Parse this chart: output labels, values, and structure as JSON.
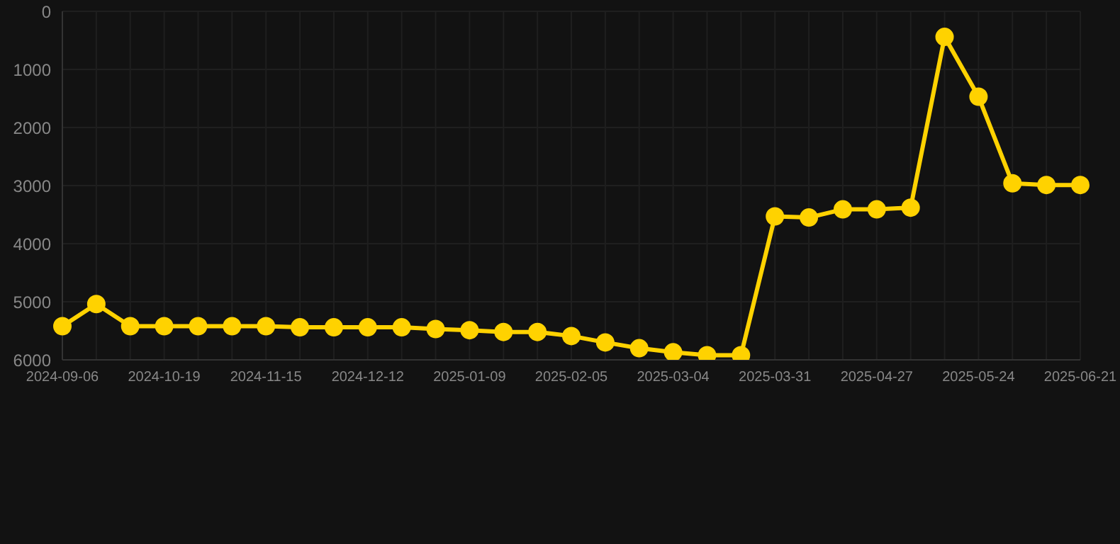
{
  "chart_data": {
    "type": "line",
    "categories": [
      "2024-09-06",
      null,
      null,
      "2024-10-19",
      null,
      null,
      "2024-11-15",
      null,
      null,
      "2024-12-12",
      null,
      null,
      "2025-01-09",
      null,
      null,
      "2025-02-05",
      null,
      null,
      "2025-03-04",
      null,
      null,
      "2025-03-31",
      null,
      null,
      "2025-04-27",
      null,
      null,
      "2025-05-24",
      null,
      null,
      "2025-06-21"
    ],
    "series": [
      {
        "color": "#ffd200",
        "values": [
          5420,
          5040,
          5420,
          5420,
          5420,
          5420,
          5420,
          5440,
          5440,
          5440,
          5440,
          5470,
          5490,
          5520,
          5520,
          5590,
          5700,
          5800,
          5870,
          5920,
          5920,
          3530,
          3550,
          3410,
          3410,
          3380,
          440,
          1470,
          2960,
          2990,
          2990
        ]
      }
    ],
    "ylim": [
      6000,
      0
    ],
    "yticks": [
      0,
      1000,
      2000,
      3000,
      4000,
      5000,
      6000
    ],
    "grid": true,
    "legend": false,
    "marker": "circle",
    "line_style": "solid"
  }
}
